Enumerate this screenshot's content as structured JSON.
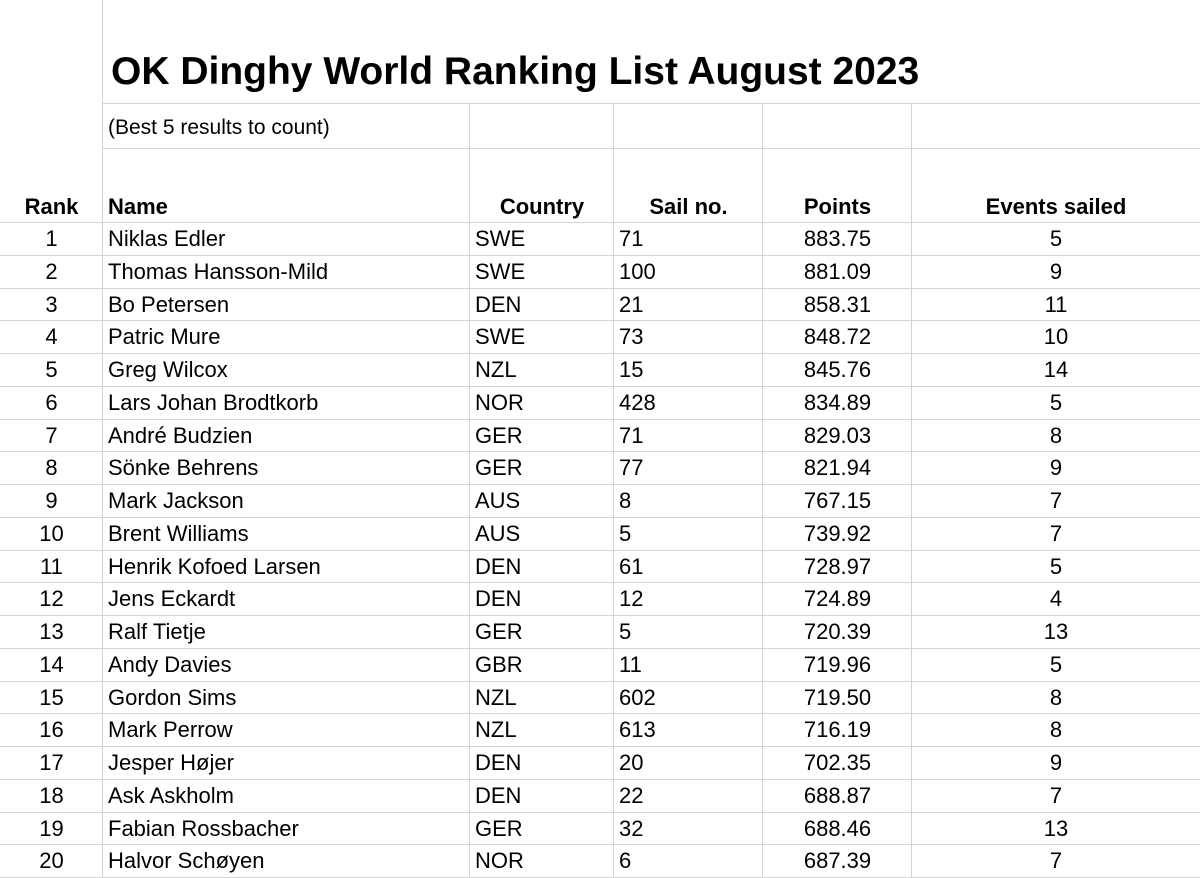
{
  "header": {
    "title": "OK Dinghy World Ranking List August 2023",
    "subtitle": "(Best 5 results to count)"
  },
  "table": {
    "columns": [
      "Rank",
      "Name",
      "Country",
      "Sail no.",
      "Points",
      "Events sailed"
    ],
    "rows": [
      [
        "1",
        "Niklas Edler",
        "SWE",
        "71",
        "883.75",
        "5"
      ],
      [
        "2",
        "Thomas Hansson-Mild",
        "SWE",
        "100",
        "881.09",
        "9"
      ],
      [
        "3",
        "Bo Petersen",
        "DEN",
        "21",
        "858.31",
        "11"
      ],
      [
        "4",
        "Patric Mure",
        "SWE",
        "73",
        "848.72",
        "10"
      ],
      [
        "5",
        "Greg Wilcox",
        "NZL",
        "15",
        "845.76",
        "14"
      ],
      [
        "6",
        "Lars Johan Brodtkorb",
        "NOR",
        "428",
        "834.89",
        "5"
      ],
      [
        "7",
        "André Budzien",
        "GER",
        "71",
        "829.03",
        "8"
      ],
      [
        "8",
        "Sönke Behrens",
        "GER",
        "77",
        "821.94",
        "9"
      ],
      [
        "9",
        "Mark Jackson",
        "AUS",
        "8",
        "767.15",
        "7"
      ],
      [
        "10",
        "Brent Williams",
        "AUS",
        "5",
        "739.92",
        "7"
      ],
      [
        "11",
        "Henrik Kofoed Larsen",
        "DEN",
        "61",
        "728.97",
        "5"
      ],
      [
        "12",
        "Jens Eckardt",
        "DEN",
        "12",
        "724.89",
        "4"
      ],
      [
        "13",
        "Ralf Tietje",
        "GER",
        "5",
        "720.39",
        "13"
      ],
      [
        "14",
        "Andy Davies",
        "GBR",
        "11",
        "719.96",
        "5"
      ],
      [
        "15",
        "Gordon Sims",
        "NZL",
        "602",
        "719.50",
        "8"
      ],
      [
        "16",
        "Mark Perrow",
        "NZL",
        "613",
        "716.19",
        "8"
      ],
      [
        "17",
        "Jesper Højer",
        "DEN",
        "20",
        "702.35",
        "9"
      ],
      [
        "18",
        "Ask Askholm",
        "DEN",
        "22",
        "688.87",
        "7"
      ],
      [
        "19",
        "Fabian Rossbacher",
        "GER",
        "32",
        "688.46",
        "13"
      ],
      [
        "20",
        "Halvor Schøyen",
        "NOR",
        "6",
        "687.39",
        "7"
      ]
    ]
  }
}
